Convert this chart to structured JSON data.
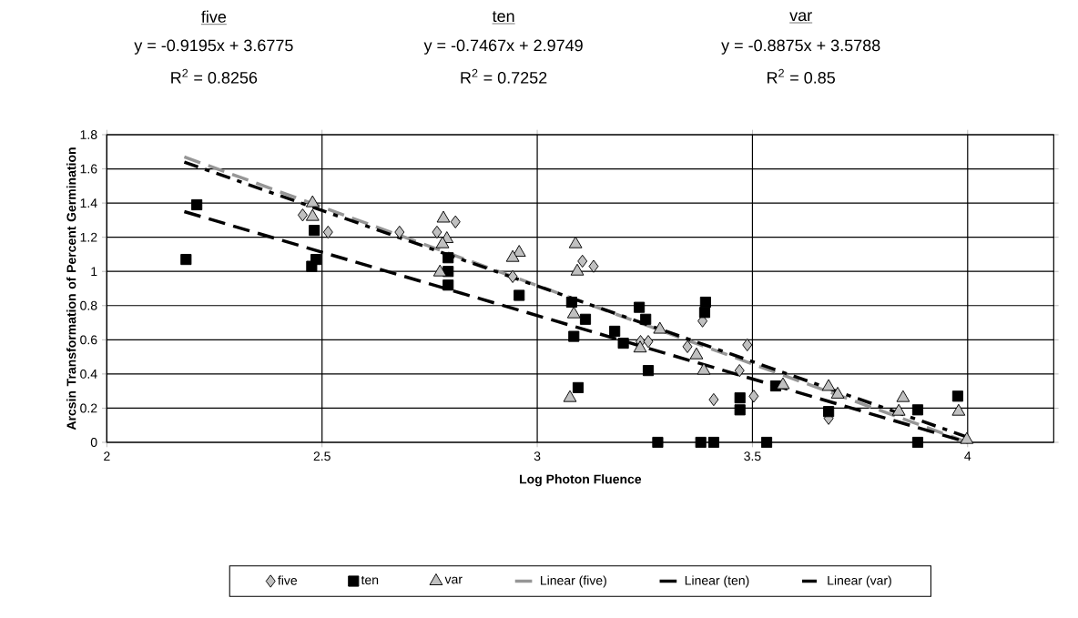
{
  "chart_data": {
    "type": "scatter",
    "xlabel": "Log Photon Fluence",
    "ylabel": "Arcsin Transformation of Percent Germination",
    "annotations": [
      "five",
      "y = -0.9195x + 3.6775",
      "R$^{2}$ = 0.8256",
      "ten",
      "y = -0.7467x + 2.9749",
      "R$^{2}$ = 0.7252",
      "var",
      "y = -0.8875x + 3.5788",
      "R$^{2}$ = 0.85"
    ],
    "xlim": [
      2,
      4.2
    ],
    "ylim": [
      0,
      1.8
    ],
    "xticks": [
      2,
      2.5,
      3,
      3.5,
      4
    ],
    "yticks": [
      0,
      0.2,
      0.4,
      0.6,
      0.8,
      1,
      1.2,
      1.4,
      1.6,
      1.8
    ],
    "grid": true,
    "legend": "bottom",
    "series": [
      {
        "name": "five",
        "marker": "diamond",
        "color": "#c0c0c0",
        "x": [
          2.455,
          2.514,
          2.68,
          2.767,
          2.81,
          2.943,
          3.105,
          3.131,
          3.24,
          3.258,
          3.349,
          3.384,
          3.41,
          3.47,
          3.488,
          3.503,
          3.677
        ],
        "values": [
          1.33,
          1.23,
          1.23,
          1.23,
          1.29,
          0.97,
          1.06,
          1.03,
          0.59,
          0.59,
          0.56,
          0.71,
          0.25,
          0.42,
          0.57,
          0.27,
          0.14
        ]
      },
      {
        "name": "ten",
        "marker": "square",
        "color": "#000000",
        "x": [
          2.209,
          2.184,
          2.482,
          2.476,
          2.486,
          2.793,
          2.793,
          2.793,
          2.958,
          3.08,
          3.112,
          3.085,
          3.095,
          3.237,
          3.252,
          3.18,
          3.2,
          3.258,
          3.28,
          3.391,
          3.389,
          3.471,
          3.471,
          3.38,
          3.41,
          3.533,
          3.554,
          3.677,
          3.884,
          3.884,
          3.977
        ],
        "values": [
          1.39,
          1.07,
          1.24,
          1.03,
          1.07,
          1.08,
          1.0,
          0.92,
          0.86,
          0.82,
          0.72,
          0.62,
          0.32,
          0.79,
          0.72,
          0.65,
          0.58,
          0.42,
          0,
          0.82,
          0.76,
          0.26,
          0.19,
          0,
          0,
          0,
          0.33,
          0.18,
          0.19,
          0,
          0.27
        ]
      },
      {
        "name": "var",
        "marker": "triangle",
        "color": "#c0c0c0",
        "x": [
          2.478,
          2.478,
          2.782,
          2.79,
          2.774,
          2.78,
          2.958,
          2.943,
          3.089,
          3.093,
          3.085,
          3.076,
          3.285,
          3.239,
          3.37,
          3.387,
          3.571,
          3.677,
          3.698,
          3.85,
          3.84,
          3.979,
          3.998
        ],
        "values": [
          1.4,
          1.32,
          1.31,
          1.19,
          0.995,
          1.16,
          1.11,
          1.08,
          1.16,
          1.0,
          0.75,
          0.26,
          0.66,
          0.55,
          0.51,
          0.42,
          0.335,
          0.325,
          0.28,
          0.26,
          0.18,
          0.18,
          0.015
        ]
      },
      {
        "name": "Linear (five)",
        "type": "line",
        "marker": "none",
        "line_style": "dashed",
        "color": "#969696",
        "x": [
          2.18,
          4
        ],
        "values": [
          1.67,
          0.0
        ]
      },
      {
        "name": "Linear (ten)",
        "type": "line",
        "marker": "none",
        "line_style": "dashed",
        "color": "#000000",
        "x": [
          2.18,
          4
        ],
        "values": [
          1.35,
          0.0
        ]
      },
      {
        "name": "Linear (var)",
        "type": "line",
        "marker": "none",
        "line_style": "dotted",
        "color": "#000000",
        "x": [
          2.18,
          4
        ],
        "values": [
          1.64,
          0.03
        ]
      }
    ]
  }
}
